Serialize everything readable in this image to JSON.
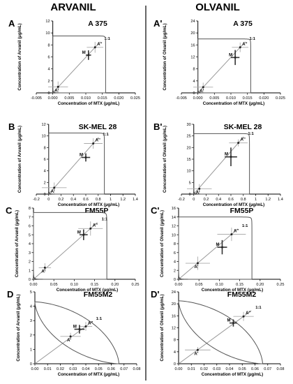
{
  "columns": [
    "ARVANIL",
    "OLVANIL"
  ],
  "chart_data": [
    {
      "type": "line",
      "panel": "A",
      "title": "A 375",
      "xlabel": "Concentration of MTX (µg/mL)",
      "ylabel": "Concentration of Arvanil (µg/mL)",
      "xlim": [
        -0.005,
        0.025
      ],
      "ylim": [
        0,
        12
      ],
      "xticks": [
        "-0.005",
        "0.000",
        "0.005",
        "0.010",
        "0.015",
        "0.020",
        "0.025"
      ],
      "yticks": [
        "0",
        "2",
        "4",
        "6",
        "8",
        "10",
        "12"
      ],
      "x_intercept": 0.016,
      "y_intercept": 9.5,
      "points": [
        {
          "label": "A'",
          "x": 0.0016,
          "y": 1.0,
          "ex": 0.003,
          "ey": 0.9
        },
        {
          "label": "A''",
          "x": 0.0128,
          "y": 7.6,
          "ex": 0.0025,
          "ey": 0.9
        },
        {
          "label": "M",
          "x": 0.0108,
          "y": 6.3,
          "ex": 0.0008,
          "ey": 0.8
        }
      ],
      "ratio_label": "1:1"
    },
    {
      "type": "line",
      "panel": "A'",
      "title": "A 375",
      "xlabel": "Concentration of MTX (µg/mL)",
      "ylabel": "Concentration of Olvanil (µg/mL)",
      "xlim": [
        -0.005,
        0.025
      ],
      "ylim": [
        0,
        24
      ],
      "xticks": [
        "-0.005",
        "0.000",
        "0.005",
        "0.010",
        "0.015",
        "0.020",
        "0.025"
      ],
      "yticks": [
        "0",
        "4",
        "8",
        "12",
        "16",
        "20",
        "24"
      ],
      "x_intercept": 0.016,
      "y_intercept": 18,
      "points": [
        {
          "label": "A'",
          "x": 0.0016,
          "y": 1.9,
          "ex": 0.003,
          "ey": 1.5
        },
        {
          "label": "A''",
          "x": 0.0128,
          "y": 15.2,
          "ex": 0.0025,
          "ey": 1.6
        },
        {
          "label": "M",
          "x": 0.0113,
          "y": 11.8,
          "ex": 0.0013,
          "ey": 2.5
        }
      ],
      "ratio_label": "1:1"
    },
    {
      "type": "line",
      "panel": "B",
      "title": "SK-MEL 28",
      "xlabel": "Concentration of MTX (µg/mL)",
      "ylabel": "Concentration of Arvanil (µg/mL)",
      "xlim": [
        -0.2,
        1.4
      ],
      "ylim": [
        0,
        12
      ],
      "xticks": [
        "-0.2",
        "0",
        "0.2",
        "0.4",
        "0.6",
        "0.8",
        "1",
        "1.2",
        "1.4"
      ],
      "yticks": [
        "0",
        "2",
        "4",
        "6",
        "8",
        "10",
        "12"
      ],
      "x_intercept": 0.9,
      "y_intercept": 10.5,
      "points": [
        {
          "label": "A'",
          "x": 0.09,
          "y": 1.1,
          "ex": 0.2,
          "ey": 0.9
        },
        {
          "label": "A''",
          "x": 0.72,
          "y": 8.7,
          "ex": 0.15,
          "ey": 0.9
        },
        {
          "label": "M",
          "x": 0.6,
          "y": 6.3,
          "ex": 0.07,
          "ey": 0.7
        }
      ],
      "ratio_label": "1:1"
    },
    {
      "type": "line",
      "panel": "B'",
      "title": "SK-MEL 28",
      "xlabel": "Concentration of MTX (µg/mL)",
      "ylabel": "Concentration of Olvanil (µg/mL)",
      "xlim": [
        -0.2,
        1.4
      ],
      "ylim": [
        0,
        30
      ],
      "xticks": [
        "-0.2",
        "0",
        "0.2",
        "0.4",
        "0.6",
        "0.8",
        "1",
        "1.2",
        "1.4"
      ],
      "yticks": [
        "0",
        "5",
        "10",
        "15",
        "20",
        "25",
        "30"
      ],
      "x_intercept": 0.9,
      "y_intercept": 26,
      "points": [
        {
          "label": "A'",
          "x": 0.09,
          "y": 2.3,
          "ex": 0.2,
          "ey": 2.0
        },
        {
          "label": "A''",
          "x": 0.72,
          "y": 22.0,
          "ex": 0.15,
          "ey": 1.5
        },
        {
          "label": "M",
          "x": 0.6,
          "y": 16.0,
          "ex": 0.1,
          "ey": 4.0
        }
      ],
      "ratio_label": "1:1"
    },
    {
      "type": "line",
      "panel": "C",
      "title": "FM55P",
      "xlabel": "Concentration of MTX (µg/mL)",
      "ylabel": "Concentration of Arvanil (µg/mL)",
      "xlim": [
        0,
        0.25
      ],
      "ylim": [
        0,
        8
      ],
      "xticks": [
        "0.00",
        "0.05",
        "0.10",
        "0.15",
        "0.20",
        "0.25"
      ],
      "yticks": [
        "0",
        "1",
        "2",
        "3",
        "4",
        "5",
        "6",
        "7",
        "8"
      ],
      "x_intercept": 0.18,
      "y_intercept": 7.5,
      "points": [
        {
          "label": "A'",
          "x": 0.028,
          "y": 1.3,
          "ex": 0.015,
          "ey": 0.5
        },
        {
          "label": "A''",
          "x": 0.14,
          "y": 5.7,
          "ex": 0.03,
          "ey": 0.8
        },
        {
          "label": "M",
          "x": 0.123,
          "y": 5.0,
          "ex": 0.01,
          "ey": 0.6
        }
      ],
      "ratio_label": "1:1"
    },
    {
      "type": "line",
      "panel": "C'",
      "title": "FM55P",
      "xlabel": "Concentration of MTX (µg/mL)",
      "ylabel": "Concentration of Olvanil (µg/mL)",
      "xlim": [
        0,
        0.25
      ],
      "ylim": [
        0,
        16
      ],
      "xticks": [
        "0.00",
        "0.05",
        "0.10",
        "0.15",
        "0.20",
        "0.25"
      ],
      "yticks": [
        "0",
        "2",
        "4",
        "6",
        "8",
        "10",
        "12",
        "14",
        "16"
      ],
      "x_intercept": 0.18,
      "y_intercept": 14,
      "points": [
        {
          "label": "A'",
          "x": 0.047,
          "y": 3.6,
          "ex": 0.03,
          "ey": 1.5
        },
        {
          "label": "A''",
          "x": 0.13,
          "y": 10.1,
          "ex": 0.035,
          "ey": 1.5
        },
        {
          "label": "M",
          "x": 0.107,
          "y": 7.2,
          "ex": 0.012,
          "ey": 1.6
        }
      ],
      "ratio_label": "1:1"
    },
    {
      "type": "line",
      "panel": "D",
      "title": "FM55M2",
      "xlabel": "Concentration of MTX (µg/mL)",
      "ylabel": "Concentration of Arvanil (µg/mL)",
      "xlim": [
        0,
        0.08
      ],
      "ylim": [
        0,
        5
      ],
      "xticks": [
        "0.00",
        "0.01",
        "0.02",
        "0.03",
        "0.04",
        "0.05",
        "0.06",
        "0.07",
        "0.08"
      ],
      "yticks": [
        "0",
        "1",
        "2",
        "3",
        "4",
        "5"
      ],
      "x_intercept": 0.066,
      "y_intercept": 4.3,
      "points": [
        {
          "label": "A'",
          "x": 0.028,
          "y": 1.9,
          "ex": 0.008,
          "ey": 0.25
        },
        {
          "label": "A''",
          "x": 0.04,
          "y": 2.6,
          "ex": 0.005,
          "ey": 0.3
        },
        {
          "label": "M",
          "x": 0.035,
          "y": 2.4,
          "ex": 0.004,
          "ey": 0.3
        }
      ],
      "ratio_label": "1:1"
    },
    {
      "type": "line",
      "panel": "D'",
      "title": "FM55M2",
      "xlabel": "Concentration of MTX (µg/mL)",
      "ylabel": "Concentration of Olvanil (µg/mL)",
      "xlim": [
        0,
        0.08
      ],
      "ylim": [
        0,
        24
      ],
      "xticks": [
        "0.00",
        "0.01",
        "0.02",
        "0.03",
        "0.04",
        "0.05",
        "0.06",
        "0.07",
        "0.08"
      ],
      "yticks": [
        "0",
        "4",
        "8",
        "12",
        "16",
        "20",
        "24"
      ],
      "x_intercept": 0.066,
      "y_intercept": 21,
      "points": [
        {
          "label": "A'",
          "x": 0.015,
          "y": 4.6,
          "ex": 0.01,
          "ey": 1.0
        },
        {
          "label": "A''",
          "x": 0.051,
          "y": 15.8,
          "ex": 0.008,
          "ey": 1.5
        },
        {
          "label": "M",
          "x": 0.043,
          "y": 13.6,
          "ex": 0.003,
          "ey": 1.2
        }
      ],
      "ratio_label": "1:1"
    }
  ]
}
